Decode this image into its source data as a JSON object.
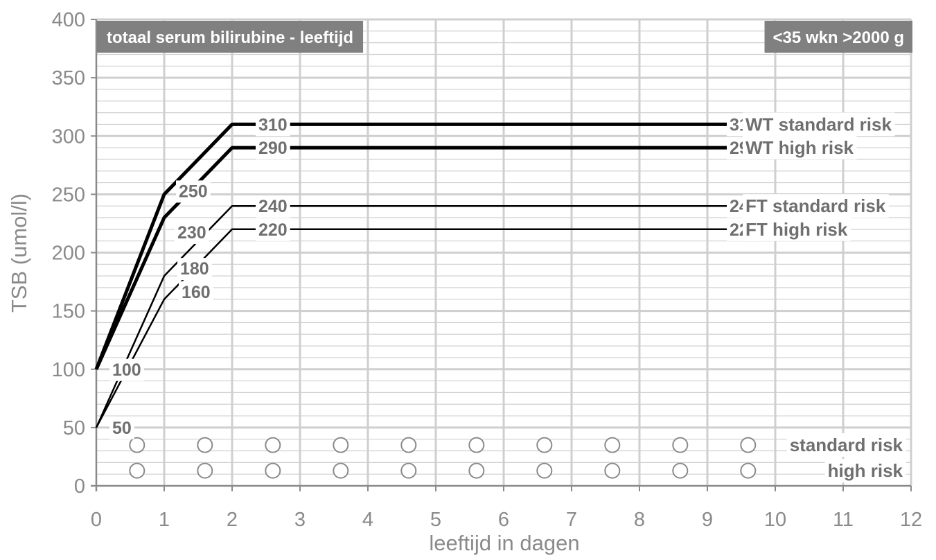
{
  "chart_data": {
    "type": "line",
    "title": "totaal serum bilirubine - leeftijd",
    "subtitle": "<35 wkn >2000 g",
    "xlabel": "leeftijd in dagen",
    "ylabel": "TSB (umol/l)",
    "xlim": [
      0,
      12
    ],
    "ylim": [
      0,
      400
    ],
    "x_ticks": [
      0,
      1,
      2,
      3,
      4,
      5,
      6,
      7,
      8,
      9,
      10,
      11,
      12
    ],
    "y_ticks": [
      0,
      50,
      100,
      150,
      200,
      250,
      300,
      350,
      400
    ],
    "grid": true,
    "series": [
      {
        "name": "WT standard risk",
        "weight": "heavy",
        "points": [
          [
            0,
            100
          ],
          [
            1,
            250
          ],
          [
            2,
            310
          ],
          [
            12,
            310
          ]
        ],
        "value_labels": [
          "250",
          "310",
          "310"
        ]
      },
      {
        "name": "WT high risk",
        "weight": "heavy",
        "points": [
          [
            0,
            100
          ],
          [
            1,
            230
          ],
          [
            2,
            290
          ],
          [
            12,
            290
          ]
        ],
        "value_labels": [
          "230",
          "290",
          "290"
        ]
      },
      {
        "name": "FT standard risk",
        "weight": "light",
        "points": [
          [
            0,
            50
          ],
          [
            1,
            180
          ],
          [
            2,
            240
          ],
          [
            12,
            240
          ]
        ],
        "value_labels": [
          "180",
          "240",
          "240"
        ]
      },
      {
        "name": "FT high risk",
        "weight": "light",
        "points": [
          [
            0,
            50
          ],
          [
            1,
            160
          ],
          [
            2,
            220
          ],
          [
            12,
            220
          ]
        ],
        "value_labels": [
          "160",
          "220",
          "220"
        ]
      }
    ],
    "start_labels": [
      "100",
      "50"
    ],
    "markers": [
      {
        "label": "standard risk",
        "y": 35,
        "x": [
          0.6,
          1.6,
          2.6,
          3.6,
          4.6,
          5.6,
          6.6,
          7.6,
          8.6,
          9.6
        ]
      },
      {
        "label": "high risk",
        "y": 13,
        "x": [
          0.6,
          1.6,
          2.6,
          3.6,
          4.6,
          5.6,
          6.6,
          7.6,
          8.6,
          9.6
        ]
      }
    ],
    "colors": {
      "line": "#000000",
      "grid": "#cfcfcf",
      "axis": "#8a8a8a",
      "header_bg": "#808080",
      "marker": "#8a8a8a"
    }
  }
}
